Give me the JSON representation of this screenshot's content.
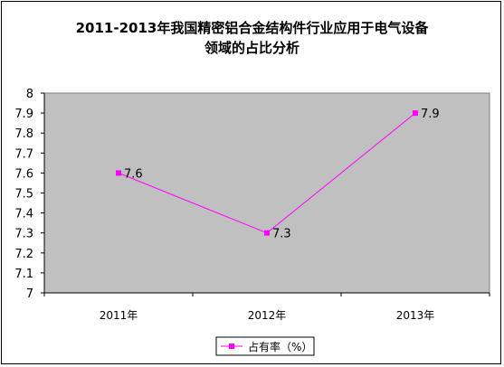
{
  "chart_data": {
    "type": "line",
    "title_line1": "2011-2013年我国精密铝合金结构件行业应用于电气设备",
    "title_line2": "领域的占比分析",
    "categories": [
      "2011年",
      "2012年",
      "2013年"
    ],
    "series": [
      {
        "name": "占有率（%）",
        "values": [
          7.6,
          7.3,
          7.9
        ],
        "color": "#ff00ff"
      }
    ],
    "data_labels": [
      "7.6",
      "7.3",
      "7.9"
    ],
    "ylim": [
      7,
      8
    ],
    "y_ticks": [
      "7",
      "7.1",
      "7.2",
      "7.3",
      "7.4",
      "7.5",
      "7.6",
      "7.7",
      "7.8",
      "7.9",
      "8"
    ],
    "plot_background": "#c0c0c0",
    "grid": false,
    "legend_position": "bottom"
  }
}
